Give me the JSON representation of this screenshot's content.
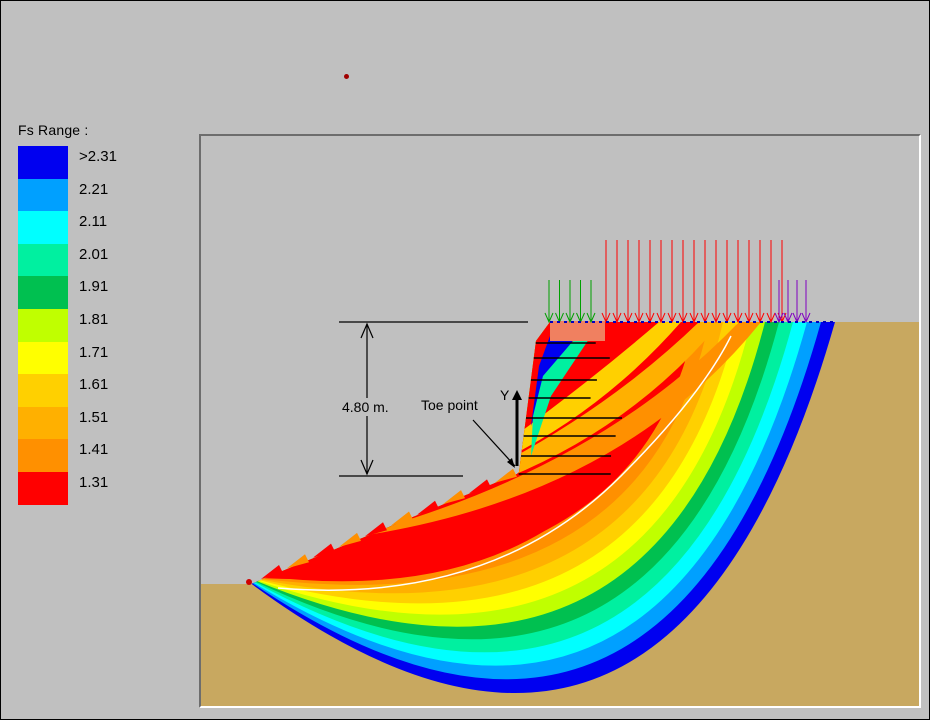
{
  "legend": {
    "title": "Fs  Range :",
    "items": [
      {
        "label": ">2.31",
        "color": "#0000f0"
      },
      {
        "label": "2.21",
        "color": "#00a0ff"
      },
      {
        "label": "2.11",
        "color": "#00ffff"
      },
      {
        "label": "2.01",
        "color": "#00f0a0"
      },
      {
        "label": "1.91",
        "color": "#00c050"
      },
      {
        "label": "1.81",
        "color": "#c0ff00"
      },
      {
        "label": "1.71",
        "color": "#ffff00"
      },
      {
        "label": "1.61",
        "color": "#ffd000"
      },
      {
        "label": "1.51",
        "color": "#ffb000"
      },
      {
        "label": "1.41",
        "color": "#ff9000"
      },
      {
        "label": "1.31",
        "color": "#ff0000"
      }
    ]
  },
  "diagram": {
    "height_label": "4.80 m.",
    "toe_label": "Toe point",
    "axis_label": "Y",
    "colors": {
      "soil": "#c8a860",
      "sky": "#c0c0c0",
      "critical_surface": "#ffffff",
      "load_red": "#ff0000",
      "load_green": "#00a000",
      "load_purple": "#8000c0",
      "wall": "#f08060"
    }
  }
}
